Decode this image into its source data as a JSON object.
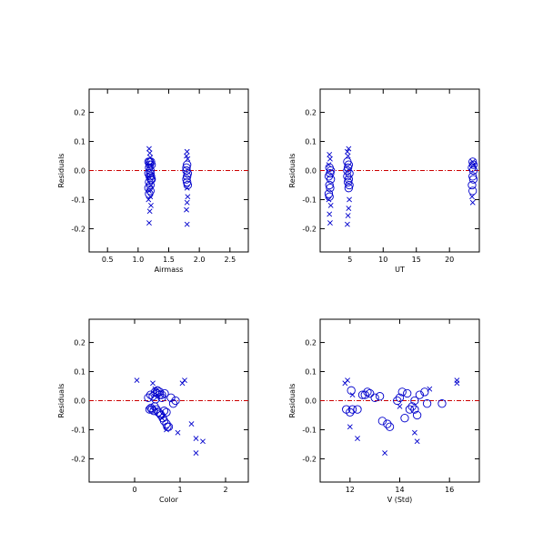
{
  "chart_data": [
    {
      "type": "scatter",
      "title": "",
      "xlabel": "Airmass",
      "ylabel": "Residuals",
      "xlim": [
        0.2,
        2.8
      ],
      "ylim": [
        -0.28,
        0.28
      ],
      "xticks": [
        0.5,
        1.0,
        1.5,
        2.0,
        2.5
      ],
      "xtick_labels": [
        "0.5",
        "1.0",
        "1.5",
        "2.0",
        "2.5"
      ],
      "yticks": [
        -0.2,
        -0.1,
        0.0,
        0.1,
        0.2
      ],
      "ytick_labels": [
        "-0.2",
        "-0.1",
        "0.0",
        "0.1",
        "0.2"
      ],
      "reference_line": 0.0,
      "series": [
        {
          "marker": "circle",
          "color": "#0000cc",
          "x": [
            1.17,
            1.19,
            1.21,
            1.18,
            1.2,
            1.22,
            1.17,
            1.19,
            1.21,
            1.18,
            1.2,
            1.22,
            1.17,
            1.2,
            1.19,
            1.21,
            1.18,
            1.2,
            1.8,
            1.79,
            1.81,
            1.8,
            1.79,
            1.81,
            1.8,
            1.79
          ],
          "y": [
            0.03,
            0.02,
            0.03,
            0.01,
            0.0,
            0.02,
            -0.01,
            -0.02,
            -0.03,
            -0.04,
            -0.05,
            -0.03,
            -0.06,
            -0.07,
            0.03,
            -0.02,
            -0.08,
            -0.01,
            0.02,
            0.0,
            -0.01,
            -0.02,
            -0.03,
            -0.05,
            -0.04,
            0.01
          ]
        },
        {
          "marker": "x",
          "color": "#0000cc",
          "x": [
            1.18,
            1.19,
            1.2,
            1.17,
            1.21,
            1.19,
            1.18,
            1.2,
            1.17,
            1.19,
            1.21,
            1.18,
            1.8,
            1.79,
            1.81,
            1.8,
            1.79,
            1.8,
            1.81,
            1.8
          ],
          "y": [
            0.075,
            0.06,
            0.045,
            -0.1,
            -0.12,
            -0.14,
            -0.18,
            -0.09,
            -0.02,
            0.02,
            -0.05,
            -0.07,
            0.065,
            0.05,
            -0.09,
            -0.11,
            -0.135,
            -0.185,
            0.04,
            -0.06
          ]
        }
      ]
    },
    {
      "type": "scatter",
      "title": "",
      "xlabel": "UT",
      "ylabel": "Residuals",
      "xlim": [
        0.5,
        24.5
      ],
      "ylim": [
        -0.28,
        0.28
      ],
      "xticks": [
        5,
        10,
        15,
        20
      ],
      "xtick_labels": [
        "5",
        "10",
        "15",
        "20"
      ],
      "yticks": [
        -0.2,
        -0.1,
        0.0,
        0.1,
        0.2
      ],
      "ytick_labels": [
        "-0.2",
        "-0.1",
        "0.0",
        "0.1",
        "0.2"
      ],
      "reference_line": 0.0,
      "series": [
        {
          "marker": "circle",
          "color": "#0000cc",
          "x": [
            1.9,
            2.0,
            1.8,
            2.1,
            1.9,
            2.0,
            1.8,
            2.1,
            1.9,
            4.6,
            4.8,
            4.7,
            4.9,
            4.6,
            4.8,
            4.7,
            4.9,
            4.6,
            4.8,
            23.5,
            23.6,
            23.4,
            23.5,
            23.6,
            23.4,
            23.5,
            23.6
          ],
          "y": [
            0.01,
            -0.01,
            -0.02,
            -0.03,
            -0.05,
            -0.06,
            -0.08,
            0.0,
            -0.09,
            0.03,
            0.02,
            0.01,
            -0.01,
            -0.02,
            -0.03,
            -0.04,
            -0.05,
            0.0,
            -0.06,
            0.03,
            0.02,
            0.01,
            -0.02,
            -0.03,
            -0.05,
            -0.07,
            0.0
          ]
        },
        {
          "marker": "x",
          "color": "#0000cc",
          "x": [
            1.9,
            2.0,
            1.8,
            2.1,
            1.9,
            2.0,
            1.8,
            4.8,
            4.6,
            4.7,
            4.9,
            4.8,
            4.7,
            4.6,
            23.5,
            23.6,
            23.4,
            23.5
          ],
          "y": [
            0.055,
            0.04,
            0.02,
            -0.12,
            -0.15,
            -0.18,
            -0.1,
            0.075,
            0.065,
            0.05,
            -0.1,
            -0.13,
            -0.155,
            -0.185,
            0.03,
            0.02,
            -0.09,
            -0.11
          ]
        }
      ]
    },
    {
      "type": "scatter",
      "title": "",
      "xlabel": "Color",
      "ylabel": "Residuals",
      "xlim": [
        -1.0,
        2.5
      ],
      "ylim": [
        -0.28,
        0.28
      ],
      "xticks": [
        0,
        1,
        2
      ],
      "xtick_labels": [
        "0",
        "1",
        "2"
      ],
      "yticks": [
        -0.2,
        -0.1,
        0.0,
        0.1,
        0.2
      ],
      "ytick_labels": [
        "-0.2",
        "-0.1",
        "0.0",
        "0.1",
        "0.2"
      ],
      "reference_line": 0.0,
      "series": [
        {
          "marker": "circle",
          "color": "#0000cc",
          "x": [
            0.35,
            0.45,
            0.5,
            0.55,
            0.6,
            0.38,
            0.42,
            0.48,
            0.52,
            0.58,
            0.62,
            0.65,
            0.7,
            0.75,
            0.8,
            0.85,
            0.9,
            0.4,
            0.44,
            0.5,
            0.55,
            0.6,
            0.65,
            0.7,
            0.72,
            0.3,
            0.36,
            0.46,
            0.56,
            0.66,
            0.33
          ],
          "y": [
            0.02,
            0.03,
            0.025,
            0.02,
            0.01,
            -0.03,
            -0.035,
            -0.03,
            -0.04,
            -0.05,
            -0.06,
            -0.07,
            -0.08,
            -0.09,
            0.01,
            -0.01,
            0.0,
            0.015,
            -0.02,
            0.035,
            0.03,
            0.02,
            -0.035,
            -0.04,
            -0.09,
            0.01,
            -0.025,
            0.005,
            -0.045,
            0.025,
            -0.03
          ]
        },
        {
          "marker": "x",
          "color": "#0000cc",
          "x": [
            0.05,
            0.4,
            0.45,
            0.6,
            0.7,
            0.95,
            1.05,
            1.1,
            1.25,
            1.35,
            1.5,
            1.35
          ],
          "y": [
            0.07,
            0.06,
            0.04,
            -0.06,
            -0.1,
            -0.11,
            0.06,
            0.07,
            -0.08,
            -0.13,
            -0.14,
            -0.18
          ]
        }
      ]
    },
    {
      "type": "scatter",
      "title": "",
      "xlabel": "V (Std)",
      "ylabel": "Residuals",
      "xlim": [
        10.8,
        17.2
      ],
      "ylim": [
        -0.28,
        0.28
      ],
      "xticks": [
        12,
        14,
        16
      ],
      "xtick_labels": [
        "12",
        "14",
        "16"
      ],
      "yticks": [
        -0.2,
        -0.1,
        0.0,
        0.1,
        0.2
      ],
      "ytick_labels": [
        "-0.2",
        "-0.1",
        "0.0",
        "0.1",
        "0.2"
      ],
      "reference_line": 0.0,
      "series": [
        {
          "marker": "circle",
          "color": "#0000cc",
          "x": [
            11.85,
            12.0,
            12.05,
            12.1,
            12.3,
            12.5,
            12.7,
            12.8,
            13.0,
            13.3,
            13.5,
            13.6,
            13.9,
            14.0,
            14.1,
            14.2,
            14.3,
            14.4,
            14.5,
            14.6,
            14.7,
            14.8,
            15.0,
            15.1,
            15.7,
            12.6,
            13.2,
            14.6
          ],
          "y": [
            -0.03,
            -0.04,
            0.035,
            -0.03,
            -0.03,
            0.02,
            0.03,
            0.025,
            0.01,
            -0.07,
            -0.08,
            -0.09,
            0.0,
            0.01,
            0.03,
            -0.06,
            0.025,
            -0.03,
            -0.02,
            0.0,
            -0.05,
            0.02,
            0.03,
            -0.01,
            -0.01,
            0.02,
            0.015,
            -0.03
          ]
        },
        {
          "marker": "x",
          "color": "#0000cc",
          "x": [
            11.8,
            11.9,
            12.0,
            12.3,
            13.4,
            14.6,
            14.7,
            15.2,
            16.3,
            16.3,
            12.1,
            14.0
          ],
          "y": [
            0.06,
            0.07,
            -0.09,
            -0.13,
            -0.18,
            -0.11,
            -0.14,
            0.04,
            0.07,
            0.06,
            0.02,
            -0.02
          ]
        }
      ]
    }
  ]
}
